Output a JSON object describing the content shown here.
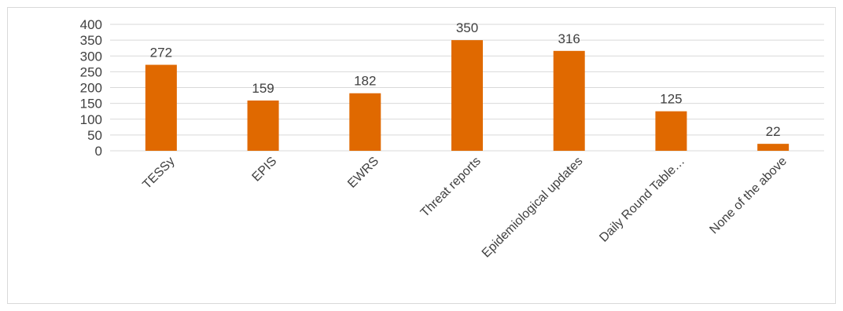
{
  "chart_data": {
    "type": "bar",
    "title": "",
    "xlabel": "",
    "ylabel": "",
    "categories": [
      "TESSy",
      "EPIS",
      "EWRS",
      "Threat reports",
      "Epidemiological updates",
      "Daily Round Table…",
      "None of the above"
    ],
    "values": [
      272,
      159,
      182,
      350,
      316,
      125,
      22
    ],
    "ylim": [
      0,
      400
    ],
    "yticks": [
      "0",
      "50",
      "100",
      "150",
      "200",
      "250",
      "300",
      "350",
      "400"
    ],
    "grid": true,
    "legend": "none",
    "bar_color": "#e06900",
    "grid_color": "#d9d9d9",
    "text_color": "#404040"
  }
}
